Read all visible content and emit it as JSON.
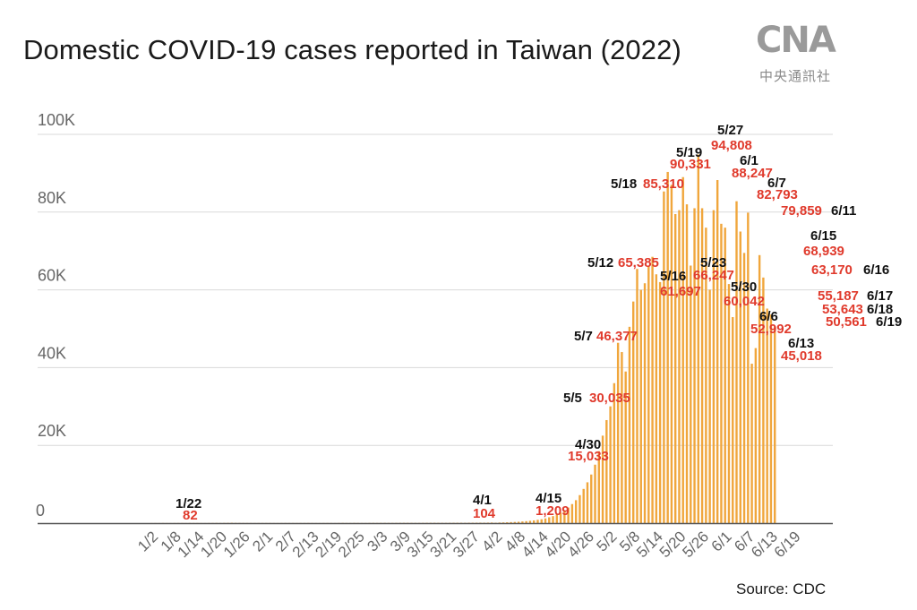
{
  "title": "Domestic COVID-19 cases reported in Taiwan (2022)",
  "logo": {
    "mark": "CNA",
    "text": "中央通訊社"
  },
  "source": "Source: CDC",
  "colors": {
    "bar": "#f0a63c",
    "label_date": "#111111",
    "label_value": "#e03a2c",
    "grid": "#d9d9d9",
    "axis": "#555555"
  },
  "chart_data": {
    "type": "bar",
    "x_start": "2022-01-01",
    "x_end": "2022-06-19",
    "y_ticks": [
      {
        "value": 0,
        "label": "0"
      },
      {
        "value": 20000,
        "label": "20K"
      },
      {
        "value": 40000,
        "label": "40K"
      },
      {
        "value": 60000,
        "label": "60K"
      },
      {
        "value": 80000,
        "label": "80K"
      },
      {
        "value": 100000,
        "label": "100K"
      }
    ],
    "ylim": [
      0,
      100000
    ],
    "x_tick_labels": [
      "1/2",
      "1/8",
      "1/14",
      "1/20",
      "1/26",
      "2/1",
      "2/7",
      "2/13",
      "2/19",
      "2/25",
      "3/3",
      "3/9",
      "3/15",
      "3/21",
      "3/27",
      "4/2",
      "4/8",
      "4/14",
      "4/20",
      "4/26",
      "5/2",
      "5/8",
      "5/14",
      "5/20",
      "5/26",
      "6/1",
      "6/7",
      "6/13",
      "6/19"
    ],
    "values": [
      20,
      25,
      18,
      30,
      22,
      15,
      28,
      35,
      30,
      25,
      40,
      30,
      35,
      25,
      20,
      30,
      40,
      45,
      35,
      50,
      60,
      82,
      55,
      45,
      40,
      35,
      30,
      28,
      35,
      30,
      30,
      35,
      25,
      20,
      30,
      40,
      35,
      30,
      25,
      30,
      35,
      40,
      30,
      25,
      20,
      30,
      35,
      30,
      25,
      40,
      45,
      35,
      30,
      50,
      40,
      35,
      30,
      45,
      50,
      40,
      55,
      60,
      50,
      45,
      55,
      60,
      70,
      65,
      60,
      55,
      50,
      60,
      70,
      75,
      80,
      70,
      65,
      60,
      70,
      80,
      85,
      90,
      80,
      100,
      95,
      104,
      120,
      110,
      130,
      150,
      104,
      150,
      180,
      220,
      260,
      300,
      350,
      420,
      500,
      600,
      700,
      850,
      1000,
      1209,
      1500,
      1800,
      2200,
      2700,
      3300,
      4000,
      4900,
      5900,
      7200,
      8800,
      10500,
      12500,
      15033,
      18500,
      22500,
      26500,
      30035,
      36000,
      46377,
      44000,
      39000,
      50500,
      57000,
      65385,
      60000,
      61697,
      66247,
      68500,
      64000,
      62000,
      85310,
      90331,
      87000,
      79500,
      80500,
      89000,
      82000,
      66247,
      81000,
      94808,
      81000,
      76000,
      60042,
      80500,
      88247,
      77000,
      76000,
      61500,
      52992,
      82793,
      75000,
      69500,
      79859,
      41000,
      45018,
      68939,
      63170,
      55187,
      53643,
      50561
    ],
    "annotations": [
      {
        "date": "1/22",
        "value_label": "82"
      },
      {
        "date": "4/1",
        "value_label": "104"
      },
      {
        "date": "4/15",
        "value_label": "1,209"
      },
      {
        "date": "4/30",
        "value_label": "15,033"
      },
      {
        "date": "5/5",
        "value_label": "30,035"
      },
      {
        "date": "5/7",
        "value_label": "46,377"
      },
      {
        "date": "5/12",
        "value_label": "65,385"
      },
      {
        "date": "5/16",
        "value_label": "61,697"
      },
      {
        "date": "5/18",
        "value_label": "85,310"
      },
      {
        "date": "5/19",
        "value_label": "90,331"
      },
      {
        "date": "5/23",
        "value_label": "66,247"
      },
      {
        "date": "5/27",
        "value_label": "94,808"
      },
      {
        "date": "5/30",
        "value_label": "60,042"
      },
      {
        "date": "6/1",
        "value_label": "88,247"
      },
      {
        "date": "6/6",
        "value_label": "52,992"
      },
      {
        "date": "6/7",
        "value_label": "82,793"
      },
      {
        "date": "6/11",
        "value_label": "79,859"
      },
      {
        "date": "6/13",
        "value_label": "45,018"
      },
      {
        "date": "6/15",
        "value_label": "68,939"
      },
      {
        "date": "6/16",
        "value_label": "63,170"
      },
      {
        "date": "6/17",
        "value_label": "55,187"
      },
      {
        "date": "6/18",
        "value_label": "53,643"
      },
      {
        "date": "6/19",
        "value_label": "50,561"
      }
    ],
    "grid": true,
    "legend": "none"
  }
}
